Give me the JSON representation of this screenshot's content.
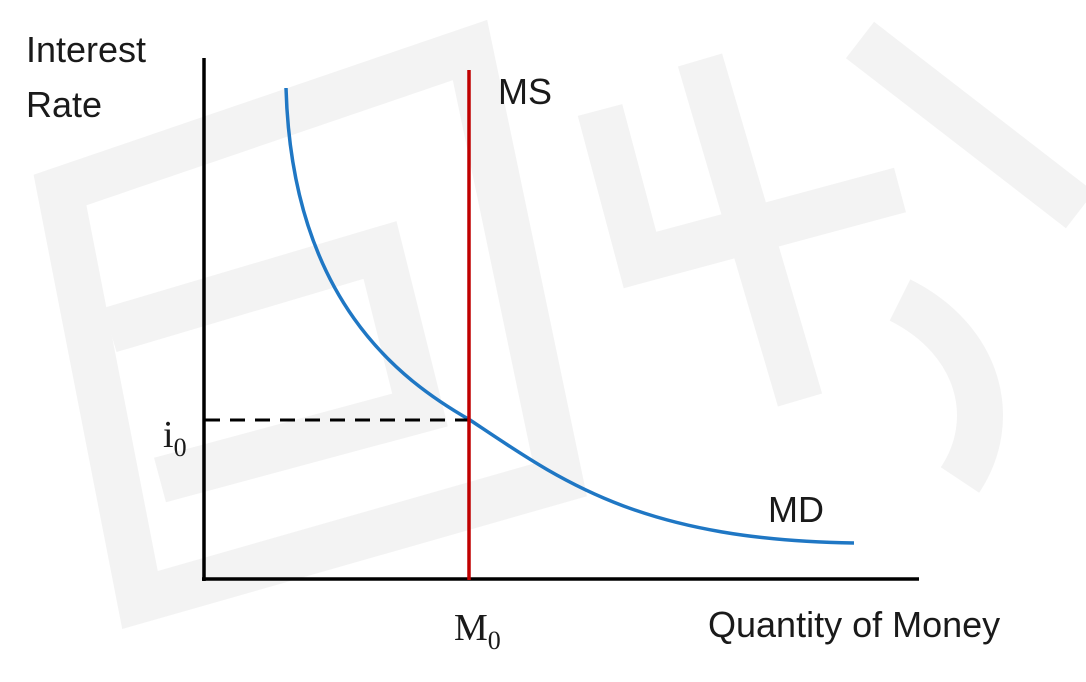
{
  "diagram": {
    "y_axis_label_line1": "Interest",
    "y_axis_label_line2": "Rate",
    "x_axis_label": "Quantity of Money",
    "supply_label": "MS",
    "demand_label": "MD",
    "equilibrium_rate_base": "i",
    "equilibrium_rate_sub": "0",
    "equilibrium_quantity_base": "M",
    "equilibrium_quantity_sub": "0",
    "colors": {
      "axes": "#000000",
      "money_supply": "#c00000",
      "money_demand": "#1f77c4",
      "guide_line": "#000000",
      "watermark": "#f3f3f3"
    }
  }
}
